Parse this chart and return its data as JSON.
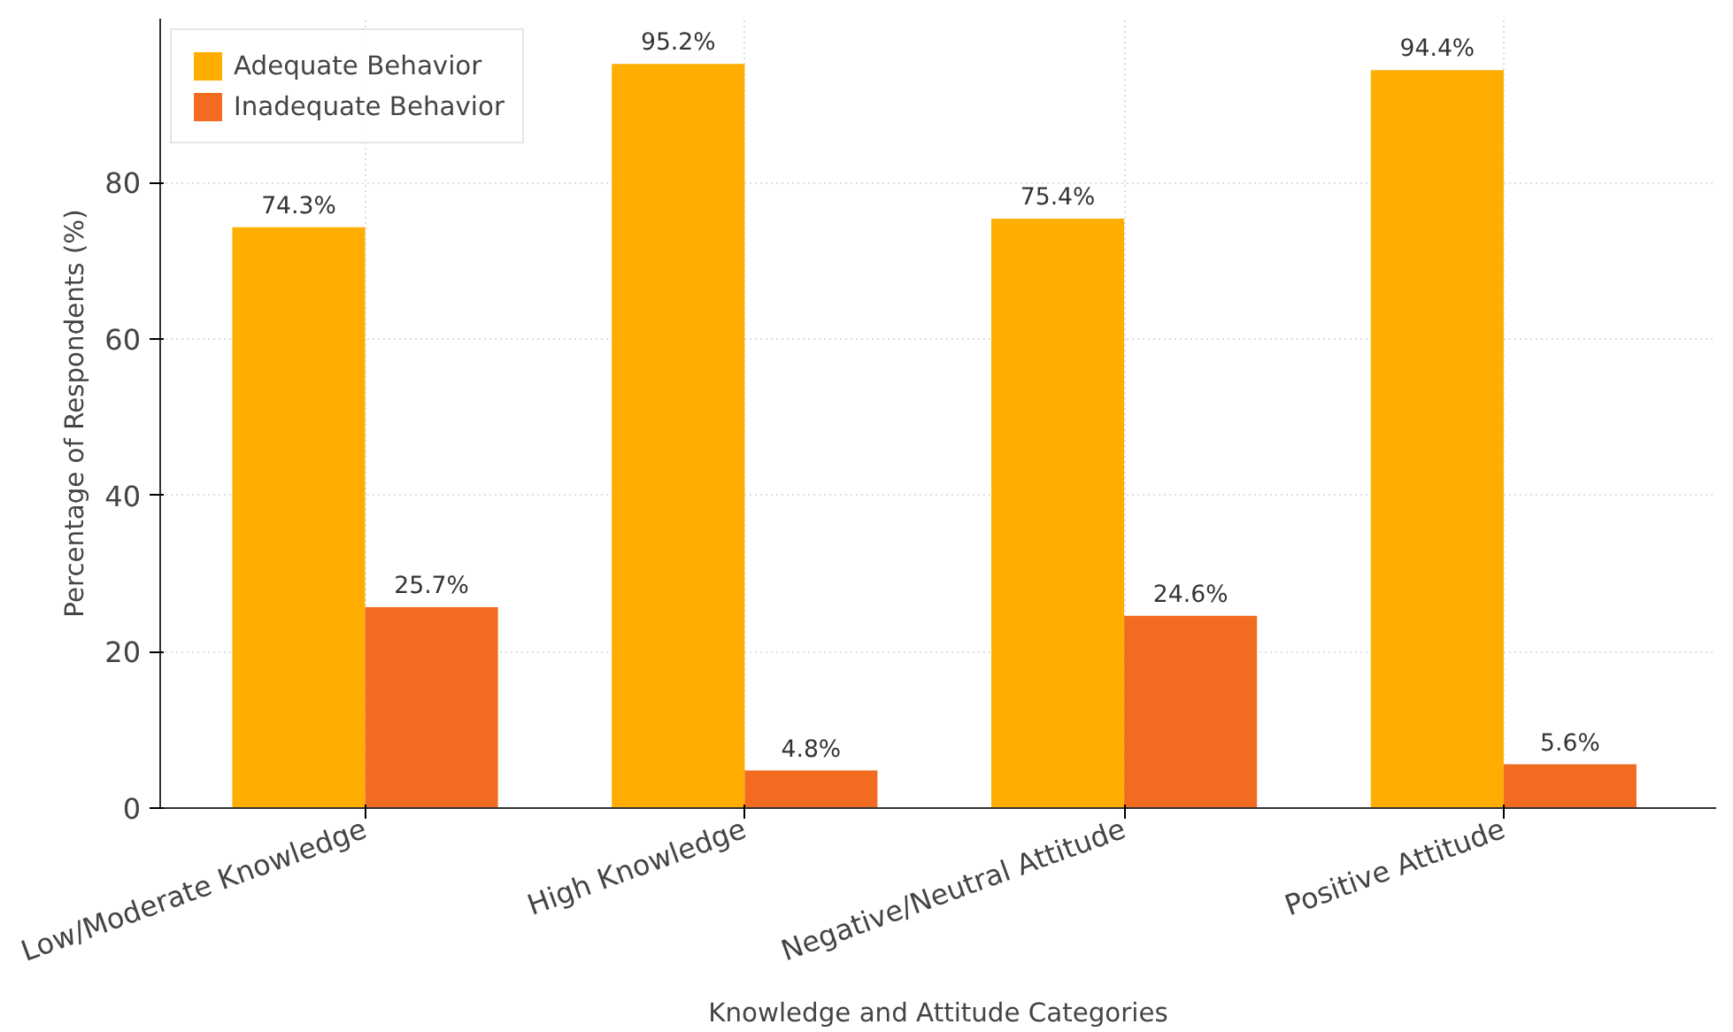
{
  "chart_data": {
    "type": "bar",
    "xlabel": "Knowledge and Attitude Categories",
    "ylabel": "Percentage of Respondents (%)",
    "categories": [
      "Low/Moderate Knowledge",
      "High Knowledge",
      "Negative/Neutral Attitude",
      "Positive Attitude"
    ],
    "series": [
      {
        "name": "Adequate Behavior",
        "color": "#ffad00",
        "values": [
          74.3,
          95.2,
          75.4,
          94.4
        ],
        "value_labels": [
          "74.3%",
          "95.2%",
          "75.4%",
          "94.4%"
        ]
      },
      {
        "name": "Inadequate Behavior",
        "color": "#f26b21",
        "values": [
          25.7,
          4.8,
          24.6,
          5.6
        ],
        "value_labels": [
          "25.7%",
          "4.8%",
          "24.6%",
          "5.6%"
        ]
      }
    ],
    "ylim": [
      0,
      101
    ],
    "yticks": [
      0,
      20,
      40,
      60,
      80
    ],
    "grid": true,
    "legend": "top left"
  }
}
